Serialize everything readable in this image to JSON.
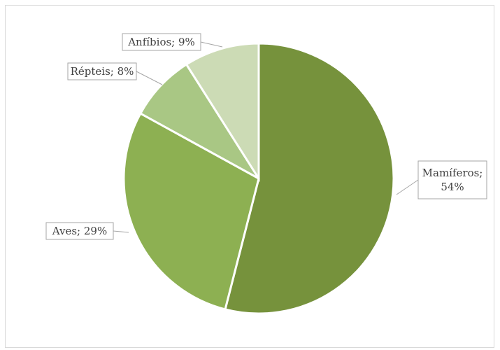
{
  "chart_data": {
    "type": "pie",
    "categories": [
      "Mamíferos",
      "Aves",
      "Répteis",
      "Anfíbios"
    ],
    "values": [
      54,
      29,
      8,
      9
    ],
    "unit": "%",
    "data_labels": [
      [
        "Mamíferos;",
        "54%"
      ],
      [
        "Aves; 29%"
      ],
      [
        "Répteis; 8%"
      ],
      [
        "Anfíbios; 9%"
      ]
    ],
    "colors": [
      "#76923c",
      "#8db052",
      "#a9c784",
      "#ccdbb5"
    ],
    "start_angle_deg": 0,
    "direction": "clockwise",
    "legend": "none",
    "title": ""
  }
}
